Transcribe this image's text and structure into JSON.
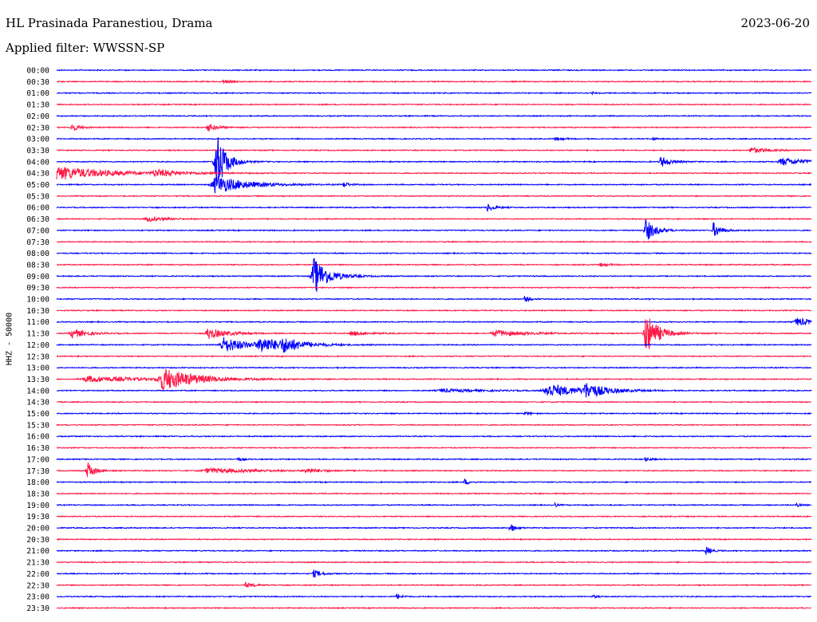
{
  "header": {
    "station": "HL Prasinada Paranestiou, Drama",
    "date": "2023-06-20",
    "filter": "Applied filter: WWSSN-SP"
  },
  "chart_data": {
    "type": "line",
    "ylabel": "HHZ - 50000",
    "row_colors": [
      "#0000ff",
      "#ff1744"
    ],
    "rows": [
      "00:00",
      "00:30",
      "01:00",
      "01:30",
      "02:00",
      "02:30",
      "03:00",
      "03:30",
      "04:00",
      "04:30",
      "05:00",
      "05:30",
      "06:00",
      "06:30",
      "07:00",
      "07:30",
      "08:00",
      "08:30",
      "09:00",
      "09:30",
      "10:00",
      "10:30",
      "11:00",
      "11:30",
      "12:00",
      "12:30",
      "13:00",
      "13:30",
      "14:00",
      "14:30",
      "15:00",
      "15:30",
      "16:00",
      "16:30",
      "17:00",
      "17:30",
      "18:00",
      "18:30",
      "19:00",
      "19:30",
      "20:00",
      "20:30",
      "21:00",
      "21:30",
      "22:00",
      "22:30",
      "23:00",
      "23:30"
    ],
    "events": [
      {
        "row": "00:30",
        "t": 0.22,
        "amp": 2.5,
        "width": 0.015
      },
      {
        "row": "01:00",
        "t": 0.71,
        "amp": 1.5,
        "width": 0.005
      },
      {
        "row": "02:30",
        "t": 0.02,
        "amp": 5,
        "width": 0.015
      },
      {
        "row": "02:30",
        "t": 0.2,
        "amp": 5,
        "width": 0.02
      },
      {
        "row": "03:00",
        "t": 0.66,
        "amp": 2,
        "width": 0.02
      },
      {
        "row": "03:00",
        "t": 0.79,
        "amp": 3,
        "width": 0.005
      },
      {
        "row": "03:30",
        "t": 0.92,
        "amp": 4,
        "width": 0.03
      },
      {
        "row": "04:00",
        "t": 0.21,
        "amp": 45,
        "width": 0.02
      },
      {
        "row": "04:00",
        "t": 0.8,
        "amp": 7,
        "width": 0.02
      },
      {
        "row": "04:00",
        "t": 0.96,
        "amp": 5,
        "width": 0.05
      },
      {
        "row": "04:30",
        "t": 0.0,
        "amp": 9,
        "width": 0.1
      },
      {
        "row": "04:30",
        "t": 0.13,
        "amp": 4,
        "width": 0.05
      },
      {
        "row": "05:00",
        "t": 0.21,
        "amp": 12,
        "width": 0.06
      },
      {
        "row": "05:00",
        "t": 0.38,
        "amp": 4,
        "width": 0.01
      },
      {
        "row": "06:00",
        "t": 0.57,
        "amp": 5,
        "width": 0.015
      },
      {
        "row": "06:30",
        "t": 0.12,
        "amp": 3,
        "width": 0.04
      },
      {
        "row": "07:00",
        "t": 0.78,
        "amp": 15,
        "width": 0.02
      },
      {
        "row": "07:00",
        "t": 0.87,
        "amp": 10,
        "width": 0.015
      },
      {
        "row": "08:30",
        "t": 0.72,
        "amp": 2,
        "width": 0.02
      },
      {
        "row": "09:00",
        "t": 0.34,
        "amp": 25,
        "width": 0.03
      },
      {
        "row": "10:00",
        "t": 0.62,
        "amp": 4,
        "width": 0.01
      },
      {
        "row": "11:00",
        "t": 0.98,
        "amp": 5,
        "width": 0.04
      },
      {
        "row": "11:30",
        "t": 0.02,
        "amp": 6,
        "width": 0.03
      },
      {
        "row": "11:30",
        "t": 0.2,
        "amp": 7,
        "width": 0.04
      },
      {
        "row": "11:30",
        "t": 0.39,
        "amp": 3,
        "width": 0.03
      },
      {
        "row": "11:30",
        "t": 0.58,
        "amp": 4,
        "width": 0.06
      },
      {
        "row": "11:30",
        "t": 0.78,
        "amp": 28,
        "width": 0.025
      },
      {
        "row": "12:00",
        "t": 0.22,
        "amp": 10,
        "width": 0.05
      },
      {
        "row": "12:00",
        "t": 0.27,
        "amp": 9,
        "width": 0.05
      },
      {
        "row": "12:00",
        "t": 0.3,
        "amp": 7,
        "width": 0.04
      },
      {
        "row": "13:30",
        "t": 0.04,
        "amp": 4,
        "width": 0.1
      },
      {
        "row": "13:30",
        "t": 0.14,
        "amp": 14,
        "width": 0.07
      },
      {
        "row": "14:00",
        "t": 0.51,
        "amp": 2,
        "width": 0.08
      },
      {
        "row": "14:00",
        "t": 0.65,
        "amp": 9,
        "width": 0.06
      },
      {
        "row": "14:00",
        "t": 0.7,
        "amp": 9,
        "width": 0.04
      },
      {
        "row": "15:00",
        "t": 0.62,
        "amp": 2,
        "width": 0.01
      },
      {
        "row": "17:00",
        "t": 0.24,
        "amp": 2,
        "width": 0.01
      },
      {
        "row": "17:00",
        "t": 0.78,
        "amp": 3,
        "width": 0.01
      },
      {
        "row": "17:30",
        "t": 0.04,
        "amp": 12,
        "width": 0.015
      },
      {
        "row": "17:30",
        "t": 0.2,
        "amp": 3,
        "width": 0.1
      },
      {
        "row": "17:30",
        "t": 0.33,
        "amp": 3,
        "width": 0.03
      },
      {
        "row": "18:00",
        "t": 0.54,
        "amp": 4,
        "width": 0.01
      },
      {
        "row": "19:00",
        "t": 0.66,
        "amp": 3,
        "width": 0.005
      },
      {
        "row": "19:00",
        "t": 0.98,
        "amp": 2,
        "width": 0.01
      },
      {
        "row": "20:00",
        "t": 0.6,
        "amp": 7,
        "width": 0.01
      },
      {
        "row": "21:00",
        "t": 0.86,
        "amp": 6,
        "width": 0.01
      },
      {
        "row": "22:00",
        "t": 0.34,
        "amp": 5,
        "width": 0.015
      },
      {
        "row": "22:30",
        "t": 0.25,
        "amp": 3,
        "width": 0.02
      },
      {
        "row": "23:00",
        "t": 0.45,
        "amp": 4,
        "width": 0.01
      },
      {
        "row": "23:00",
        "t": 0.71,
        "amp": 2,
        "width": 0.01
      }
    ]
  }
}
